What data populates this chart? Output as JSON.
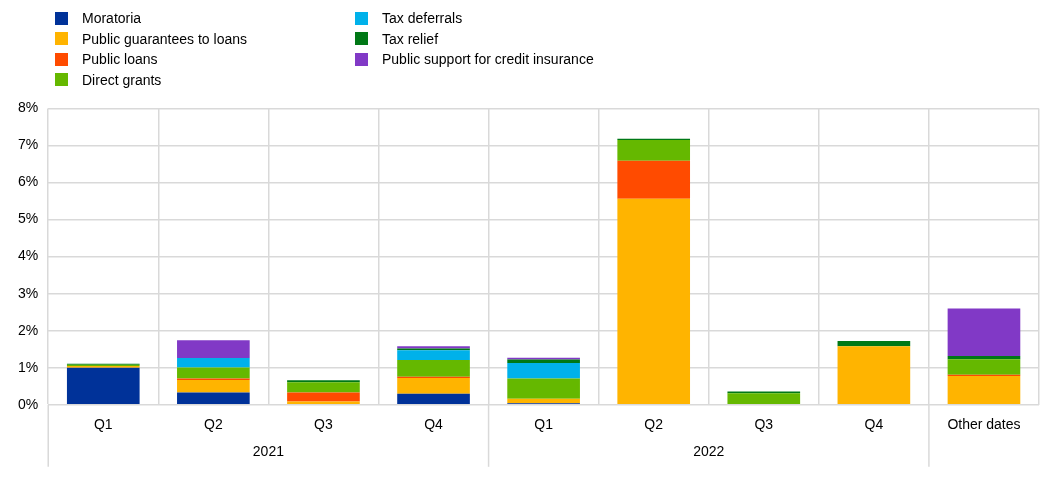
{
  "chart_data": {
    "type": "bar",
    "stacked": true,
    "categories": [
      "Q1",
      "Q2",
      "Q3",
      "Q4",
      "Q1",
      "Q2",
      "Q3",
      "Q4",
      "Other dates"
    ],
    "annotations": [
      "2021",
      "2022"
    ],
    "series": [
      {
        "name": "Moratoria",
        "color": "#003299",
        "values": [
          1.0,
          0.33,
          null,
          0.3,
          0.04,
          null,
          null,
          null,
          null
        ]
      },
      {
        "name": "Public guarantees to loans",
        "color": "#ffb400",
        "values": [
          0.05,
          0.34,
          0.09,
          0.42,
          0.12,
          5.56,
          null,
          1.58,
          0.78
        ]
      },
      {
        "name": "Public loans",
        "color": "#ff4b00",
        "values": [
          null,
          0.04,
          0.24,
          0.04,
          null,
          1.03,
          null,
          null,
          0.03
        ]
      },
      {
        "name": "Direct grants",
        "color": "#65b800",
        "values": [
          0.03,
          0.3,
          0.28,
          0.45,
          0.55,
          0.56,
          0.31,
          null,
          0.42
        ]
      },
      {
        "name": "Tax deferrals",
        "color": "#00b1ea",
        "values": [
          null,
          0.25,
          null,
          0.26,
          0.42,
          null,
          null,
          null,
          null
        ]
      },
      {
        "name": "Tax relief",
        "color": "#007816",
        "values": [
          0.03,
          null,
          0.05,
          0.05,
          0.09,
          0.03,
          0.05,
          0.14,
          0.09
        ]
      },
      {
        "name": "Public support for credit insurance",
        "color": "#8139c6",
        "values": [
          null,
          0.48,
          null,
          0.06,
          0.05,
          null,
          null,
          null,
          1.28
        ]
      }
    ],
    "ylim": [
      0,
      8
    ],
    "yticks": [
      {
        "value": 0,
        "label": "0%"
      },
      {
        "value": 1,
        "label": "1%"
      },
      {
        "value": 2,
        "label": "2%"
      },
      {
        "value": 3,
        "label": "3%"
      },
      {
        "value": 4,
        "label": "4%"
      },
      {
        "value": 5,
        "label": "5%"
      },
      {
        "value": 6,
        "label": "6%"
      },
      {
        "value": 7,
        "label": "7%"
      },
      {
        "value": 8,
        "label": "8%"
      }
    ],
    "grid": true,
    "legend": "top left"
  }
}
